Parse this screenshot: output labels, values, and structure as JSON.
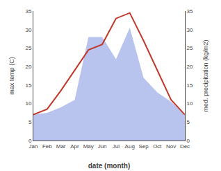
{
  "chart_data": {
    "type": "line",
    "xlabel": "date (month)",
    "ylabel": "max temp (C)",
    "y2label": "med. precipitation (kg/m2)",
    "categories": [
      "Jan",
      "Feb",
      "Mar",
      "Apr",
      "May",
      "Jun",
      "Jul",
      "Aug",
      "Sep",
      "Oct",
      "Nov",
      "Dec"
    ],
    "series": [
      {
        "name": "med. precipitation (kg/m2)",
        "type": "area",
        "axis": "y2",
        "color": "#b8c4ee",
        "values": [
          7.0,
          7.5,
          9.0,
          11.0,
          28.0,
          28.0,
          22.0,
          30.5,
          17.0,
          13.0,
          10.5,
          7.0
        ]
      },
      {
        "name": "max temp (C)",
        "type": "line",
        "color": "#c0392b",
        "values": [
          7.0,
          8.5,
          13.5,
          19.0,
          24.5,
          26.0,
          33.0,
          34.5,
          27.0,
          19.0,
          11.0,
          7.0
        ]
      }
    ],
    "ylim": [
      0,
      35
    ],
    "yticks": [
      0,
      5,
      10,
      15,
      20,
      25,
      30,
      35
    ],
    "y2lim": [
      0,
      35
    ],
    "y2ticks": [
      0,
      5,
      10,
      15,
      20,
      25,
      30,
      35
    ],
    "grid": false
  }
}
